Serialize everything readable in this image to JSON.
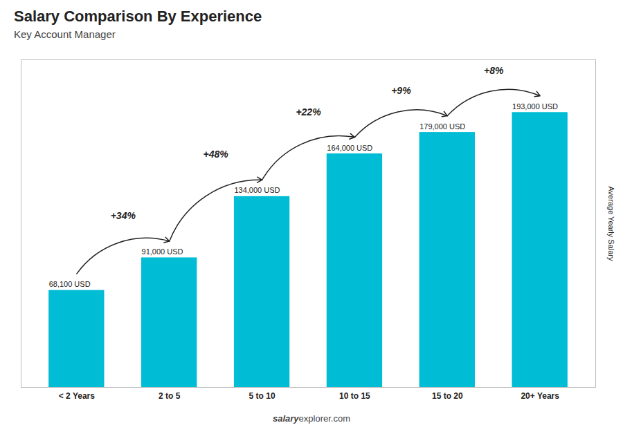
{
  "chart_data": {
    "type": "bar",
    "title": "Salary Comparison By Experience",
    "subtitle": "Key Account Manager",
    "ylabel": "Average Yearly Salary",
    "categories": [
      "< 2 Years",
      "2 to 5",
      "5 to 10",
      "10 to 15",
      "15 to 20",
      "20+ Years"
    ],
    "values": [
      68100,
      91000,
      134000,
      164000,
      179000,
      193000
    ],
    "value_labels": [
      "68,100 USD",
      "91,000 USD",
      "134,000 USD",
      "164,000 USD",
      "179,000 USD",
      "193,000 USD"
    ],
    "data_labels": true,
    "annotations": [
      "+34%",
      "+48%",
      "+22%",
      "+9%",
      "+8%"
    ],
    "caption": [
      "salary",
      "explorer.com"
    ],
    "color": "#00bcd4",
    "ylim": [
      0,
      230000
    ],
    "grid": false,
    "tick_labels": "x"
  }
}
